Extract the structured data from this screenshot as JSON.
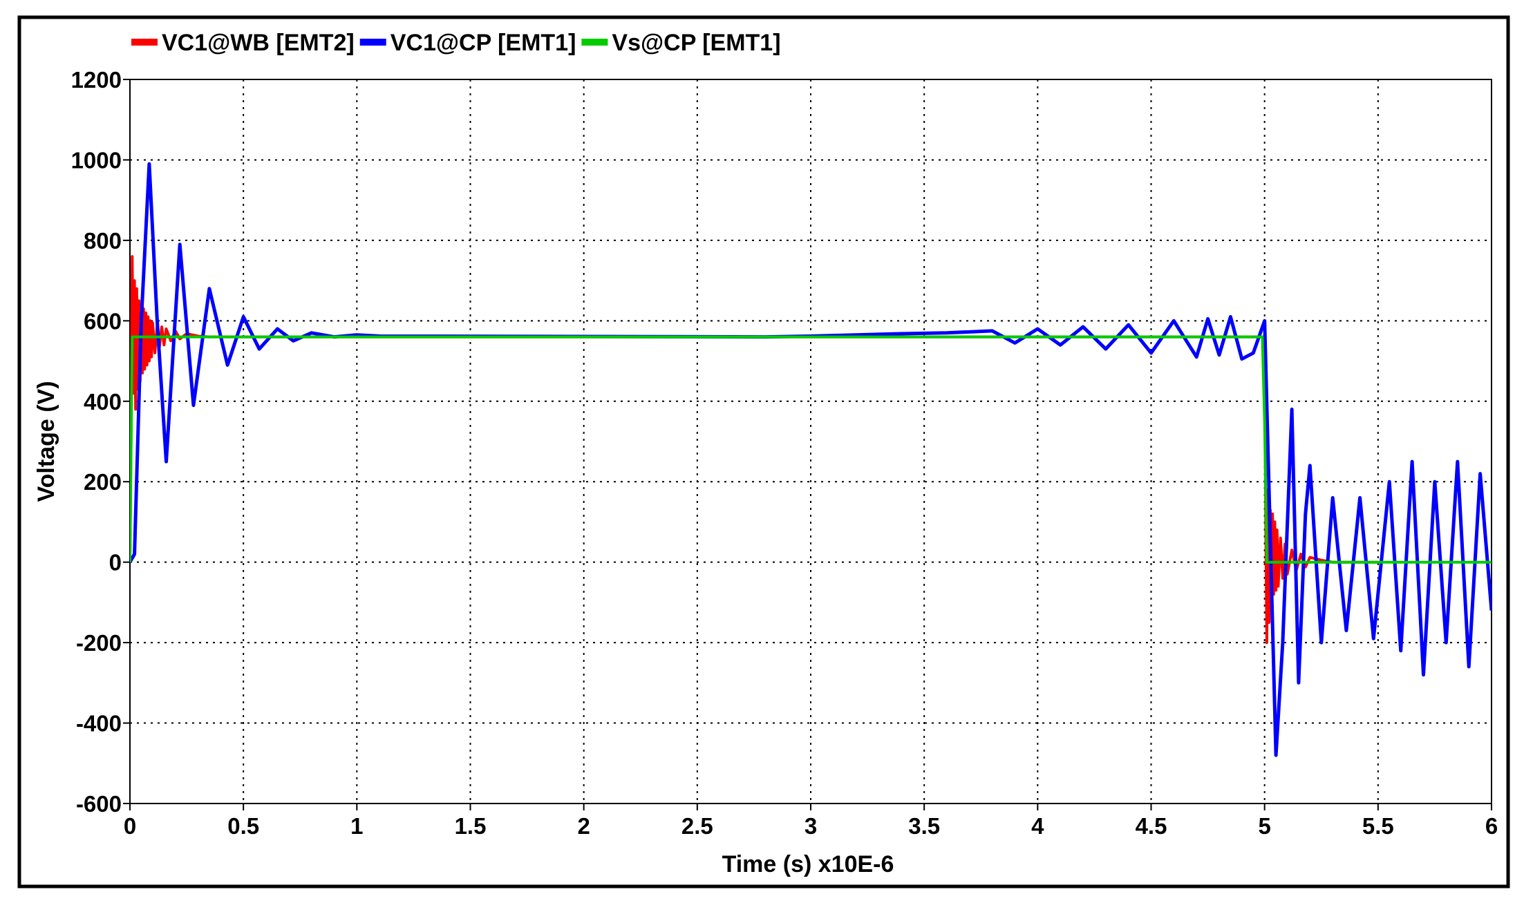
{
  "chart_data": {
    "type": "line",
    "title": "",
    "xlabel": "Time (s) x10E-6",
    "ylabel": "Voltage (V)",
    "xlim": [
      0,
      6
    ],
    "ylim": [
      -600,
      1200
    ],
    "x_ticks": [
      "0",
      "0.5",
      "1",
      "1.5",
      "2",
      "2.5",
      "3",
      "3.5",
      "4",
      "4.5",
      "5",
      "5.5",
      "6"
    ],
    "y_ticks": [
      "1200",
      "1000",
      "800",
      "600",
      "400",
      "200",
      "0",
      "-200",
      "-400",
      "-600"
    ],
    "grid": true,
    "legend_position": "top-left",
    "series": [
      {
        "name": "VC1@WB [EMT2]",
        "color": "#ff0000",
        "x": [
          0,
          0.005,
          0.01,
          0.015,
          0.02,
          0.025,
          0.03,
          0.035,
          0.04,
          0.045,
          0.05,
          0.055,
          0.06,
          0.065,
          0.07,
          0.075,
          0.08,
          0.085,
          0.09,
          0.095,
          0.1,
          0.11,
          0.12,
          0.13,
          0.14,
          0.15,
          0.16,
          0.18,
          0.2,
          0.22,
          0.25,
          0.3,
          0.35,
          0.4,
          5.0,
          5.005,
          5.01,
          5.015,
          5.02,
          5.025,
          5.03,
          5.035,
          5.04,
          5.045,
          5.05,
          5.055,
          5.06,
          5.07,
          5.08,
          5.09,
          5.1,
          5.12,
          5.14,
          5.16,
          5.18,
          5.2,
          5.25,
          5.3,
          5.4,
          5.5
        ],
        "y": [
          0,
          300,
          760,
          420,
          700,
          380,
          680,
          430,
          650,
          450,
          640,
          470,
          630,
          480,
          620,
          490,
          610,
          500,
          600,
          510,
          595,
          520,
          590,
          535,
          585,
          540,
          580,
          550,
          575,
          555,
          568,
          562,
          560,
          560,
          560,
          100,
          -200,
          180,
          -150,
          130,
          -110,
          120,
          -80,
          100,
          -70,
          80,
          -60,
          60,
          -40,
          45,
          -30,
          30,
          -20,
          20,
          -12,
          12,
          5,
          0,
          0,
          0
        ]
      },
      {
        "name": "VC1@CP [EMT1]",
        "color": "#0000ff",
        "x": [
          0,
          0.02,
          0.05,
          0.085,
          0.12,
          0.16,
          0.22,
          0.28,
          0.35,
          0.43,
          0.5,
          0.57,
          0.65,
          0.72,
          0.8,
          0.9,
          1.0,
          1.1,
          2.8,
          3.0,
          3.2,
          3.4,
          3.6,
          3.8,
          3.9,
          4.0,
          4.1,
          4.2,
          4.3,
          4.4,
          4.5,
          4.6,
          4.7,
          4.75,
          4.8,
          4.85,
          4.9,
          4.95,
          5.0,
          5.05,
          5.08,
          5.12,
          5.15,
          5.18,
          5.2,
          5.25,
          5.3,
          5.36,
          5.42,
          5.48,
          5.55,
          5.6,
          5.65,
          5.7,
          5.75,
          5.8,
          5.85,
          5.9,
          5.95,
          6.0
        ],
        "y": [
          0,
          20,
          600,
          990,
          600,
          250,
          790,
          390,
          680,
          490,
          610,
          530,
          580,
          550,
          570,
          560,
          565,
          562,
          560,
          562,
          565,
          568,
          570,
          575,
          545,
          580,
          540,
          585,
          530,
          590,
          520,
          600,
          510,
          605,
          515,
          610,
          505,
          520,
          600,
          -480,
          -200,
          380,
          -300,
          120,
          240,
          -200,
          160,
          -170,
          160,
          -190,
          200,
          -220,
          250,
          -280,
          200,
          -200,
          250,
          -260,
          220,
          -120
        ]
      },
      {
        "name": "Vs@CP [EMT1]",
        "color": "#00cc00",
        "x": [
          0,
          0.01,
          0.02,
          4.99,
          5.0,
          5.01,
          6.0
        ],
        "y": [
          0,
          560,
          560,
          560,
          350,
          0,
          0
        ]
      }
    ]
  }
}
